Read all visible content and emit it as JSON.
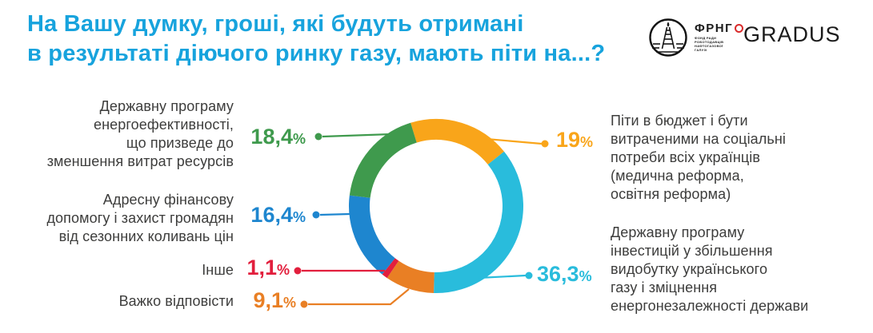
{
  "title": {
    "lines": [
      "На Вашу думку, гроші, які будуть отримані",
      "в результаті діючого ринку газу, мають піти на...?"
    ],
    "color": "#17a3dd"
  },
  "logos": {
    "frng": {
      "abbr": "ФРНГ",
      "sub_lines": [
        "ФОНД РАДИ",
        "РОБОТОДАВЦІВ",
        "НАФТОГАЗОВОЇ",
        "ГАЛУЗІ"
      ]
    },
    "gradus": {
      "name": "GRADUS",
      "degree_color": "#d92b2b"
    }
  },
  "text_color": "#3d3d3c",
  "chart_data": {
    "type": "pie",
    "subtype": "donut",
    "title": "На Вашу думку, гроші, які будуть отримані в результаті діючого ринку газу, мають піти на...?",
    "start_angle_deg_from_top": -17,
    "direction": "clockwise",
    "legend_position": "callouts",
    "items": [
      {
        "id": "budget",
        "label_lines": [
          "Піти в бюджет і бути",
          "витраченими на соціальні",
          "потреби всіх українців",
          "(медична реформа,",
          "освітня реформа)"
        ],
        "value": 19,
        "value_label": "19",
        "unit": "%",
        "color": "#f9a51a",
        "side": "right"
      },
      {
        "id": "investments",
        "label_lines": [
          "Державну програму",
          "інвестицій у збільшення",
          "видобутку українського",
          "газу і зміцнення",
          "енергонезалежності держави"
        ],
        "value": 36.3,
        "value_label": "36,3",
        "unit": "%",
        "color": "#29bcdc",
        "side": "right"
      },
      {
        "id": "hard_to_answer",
        "label_lines": [
          "Важко відповісти"
        ],
        "value": 9.1,
        "value_label": "9,1",
        "unit": "%",
        "color": "#e97f24",
        "side": "left"
      },
      {
        "id": "other",
        "label_lines": [
          "Інше"
        ],
        "value": 1.1,
        "value_label": "1,1",
        "unit": "%",
        "color": "#e21f3d",
        "side": "left"
      },
      {
        "id": "targeted_aid",
        "label_lines": [
          "Адресну фінансову",
          "допомогу і захист громадян",
          "від сезонних коливань цін"
        ],
        "value": 16.4,
        "value_label": "16,4",
        "unit": "%",
        "color": "#1e86cf",
        "side": "left"
      },
      {
        "id": "energy_efficiency",
        "label_lines": [
          "Державну програму",
          "енергоефективності,",
          "що призведе до",
          "зменшення витрат ресурсів"
        ],
        "value": 18.4,
        "value_label": "18,4",
        "unit": "%",
        "color": "#3f9a4d",
        "side": "left"
      }
    ]
  }
}
